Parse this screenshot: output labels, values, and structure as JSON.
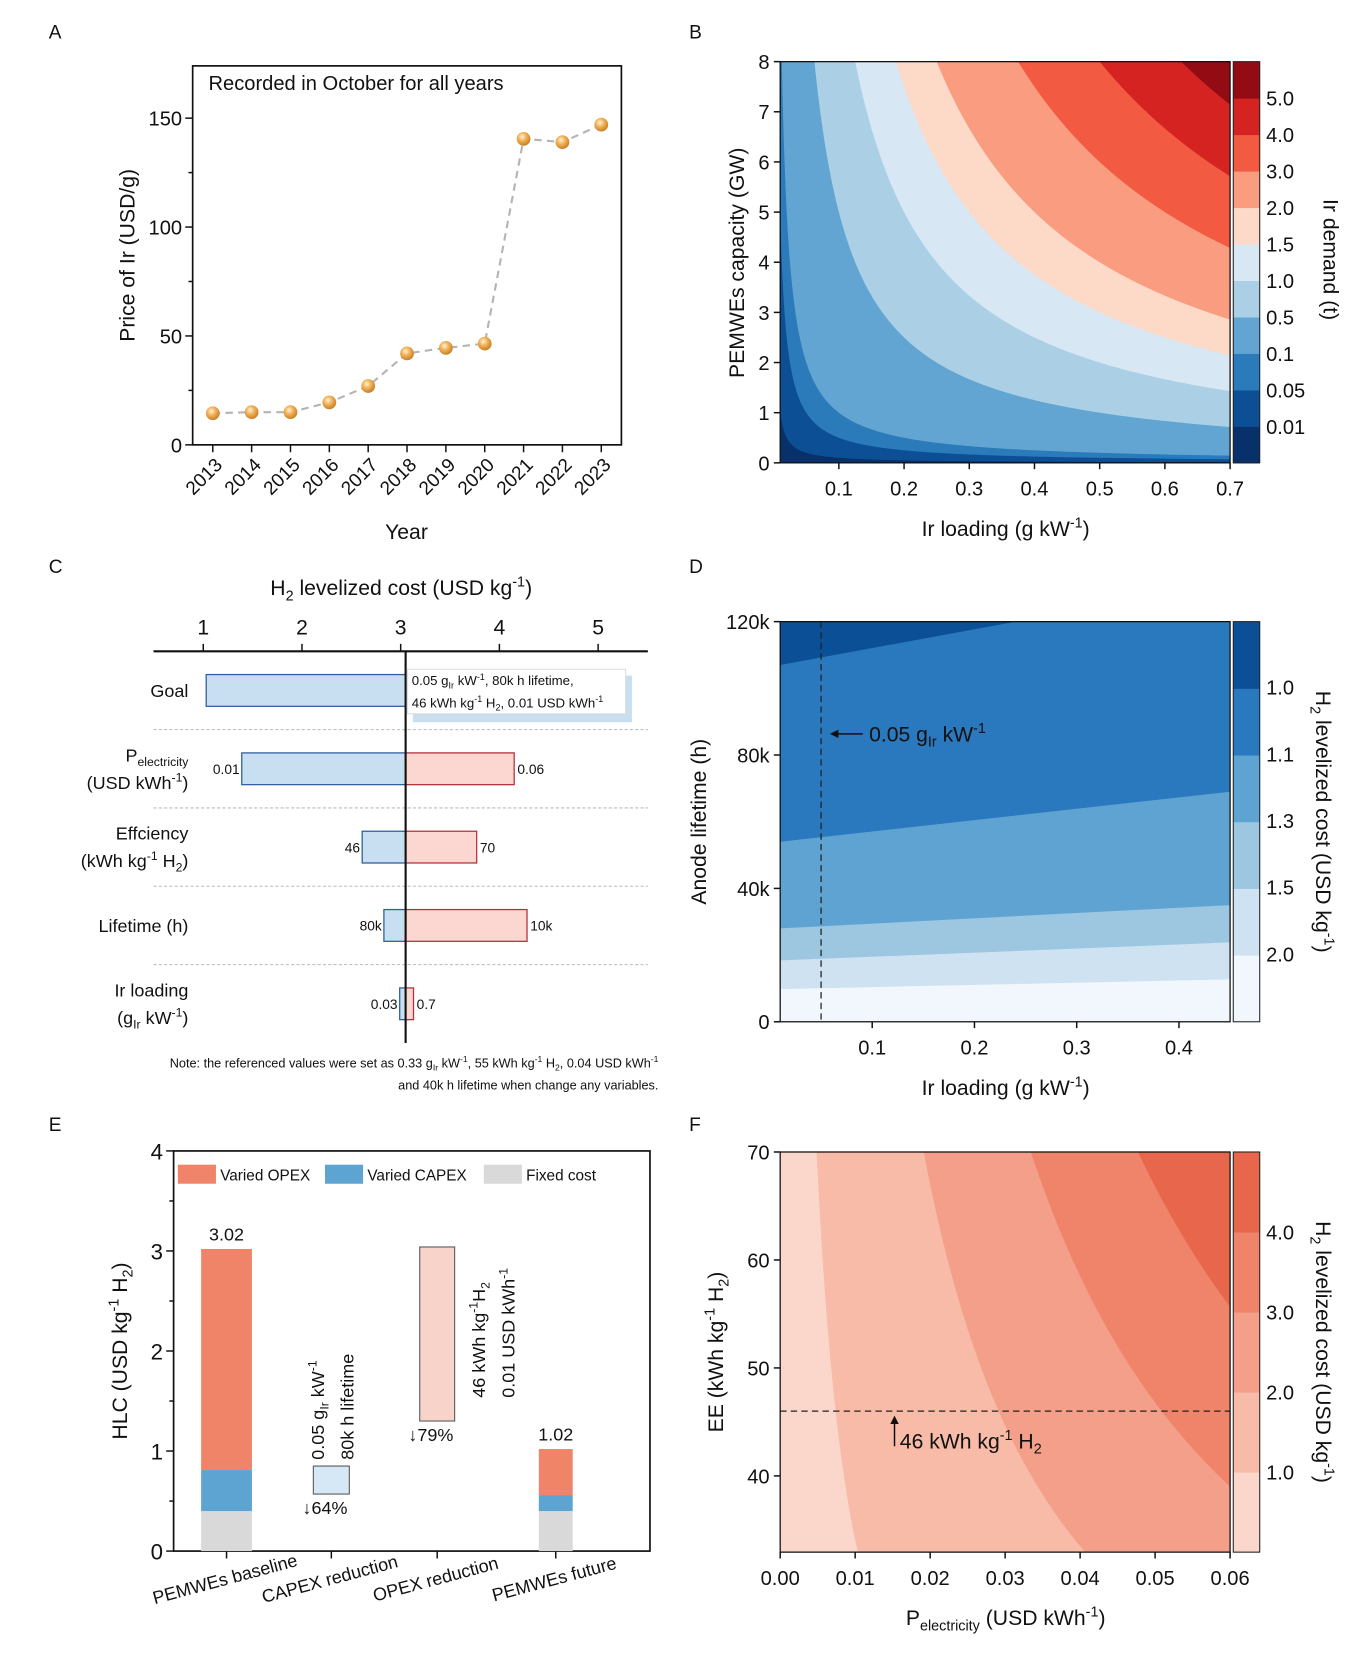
{
  "panel_letters": [
    "A",
    "B",
    "C",
    "D",
    "E",
    "F"
  ],
  "chart_data": [
    {
      "id": "A",
      "type": "line",
      "annotation": "Recorded in October for all years",
      "xlabel": [
        [
          "Year",
          ""
        ]
      ],
      "ylabel": [
        [
          "Price of Ir (USD/g)",
          ""
        ]
      ],
      "x": [
        "2013",
        "2014",
        "2015",
        "2016",
        "2017",
        "2018",
        "2019",
        "2020",
        "2021",
        "2022",
        "2023"
      ],
      "values": [
        14.5,
        15,
        15,
        19.5,
        27,
        42,
        44.5,
        46.5,
        140.5,
        139,
        147
      ],
      "ylim": [
        0,
        174
      ],
      "yticks": [
        0,
        50,
        100,
        150
      ],
      "marker_color": "#f0a848",
      "line_color": "#b4b4b4",
      "line_style": "dashed"
    },
    {
      "id": "B",
      "type": "heatmap",
      "subtype": "filled-contour",
      "xlabel": [
        [
          "Ir loading (g kW",
          ""
        ],
        [
          "-1",
          "sup"
        ],
        [
          ")",
          ""
        ]
      ],
      "ylabel": [
        [
          "PEMWEs capacity (GW)",
          ""
        ]
      ],
      "colorbar_label": [
        [
          "Ir demand (t)",
          ""
        ]
      ],
      "xlim": [
        0.01,
        0.7
      ],
      "ylim": [
        0,
        8
      ],
      "xticks": [
        "0.1",
        "0.2",
        "0.3",
        "0.4",
        "0.5",
        "0.6",
        "0.7"
      ],
      "yticks": [
        "0",
        "1",
        "2",
        "3",
        "4",
        "5",
        "6",
        "7",
        "8"
      ],
      "levels": [
        0.01,
        0.05,
        0.1,
        0.5,
        1.0,
        1.5,
        2.0,
        3.0,
        4.0,
        5.0
      ],
      "level_labels": [
        "0.01",
        "0.05",
        "0.1",
        "0.5",
        "1.0",
        "1.5",
        "2.0",
        "3.0",
        "4.0",
        "5.0"
      ],
      "colors": [
        "#08306b",
        "#0d4f94",
        "#2b7bba",
        "#62a5d2",
        "#abd0e6",
        "#d8e7f4",
        "#fdd9c7",
        "#fa9c7f",
        "#f25a41",
        "#d42321",
        "#930c14"
      ]
    },
    {
      "id": "C",
      "type": "bar",
      "subtype": "tornado",
      "title": [
        [
          "H",
          ""
        ],
        [
          "2",
          "sub"
        ],
        [
          " levelized cost (USD kg",
          ""
        ],
        [
          "-1",
          "sup"
        ],
        [
          ")",
          ""
        ]
      ],
      "xticks": [
        "1",
        "2",
        "3",
        "4",
        "5"
      ],
      "xlim": [
        0.5,
        5.5
      ],
      "reference": 3.05,
      "rows": [
        {
          "label": [
            [
              [
                "Goal",
                ""
              ]
            ]
          ],
          "low": 1.03,
          "high": null,
          "low_label": "",
          "high_label": ""
        },
        {
          "label": [
            [
              [
                "P",
                ""
              ],
              [
                "electricity",
                "sub"
              ]
            ],
            [
              [
                "(USD kWh",
                ""
              ],
              [
                "-1",
                "sup"
              ],
              [
                ")",
                ""
              ]
            ]
          ],
          "low": 1.39,
          "high": 4.15,
          "low_label": "0.01",
          "high_label": "0.06"
        },
        {
          "label": [
            [
              [
                "Effciency",
                ""
              ]
            ],
            [
              [
                "(kWh kg",
                ""
              ],
              [
                "-1",
                "sup"
              ],
              [
                " H",
                ""
              ],
              [
                "2",
                "sub"
              ],
              [
                ")",
                ""
              ]
            ]
          ],
          "low": 2.61,
          "high": 3.77,
          "low_label": "46",
          "high_label": "70"
        },
        {
          "label": [
            [
              [
                "Lifetime (h)",
                ""
              ]
            ]
          ],
          "low": 2.83,
          "high": 4.28,
          "low_label": "80k",
          "high_label": "10k"
        },
        {
          "label": [
            [
              [
                "Ir loading",
                ""
              ]
            ],
            [
              [
                "(g",
                ""
              ],
              [
                "Ir",
                "sub"
              ],
              [
                " kW",
                ""
              ],
              [
                "-1",
                "sup"
              ],
              [
                ")",
                ""
              ]
            ]
          ],
          "low": 2.99,
          "high": 3.13,
          "low_label": "0.03",
          "high_label": "0.7"
        }
      ],
      "goal_note": [
        [
          [
            "0.05 g",
            ""
          ],
          [
            "Ir",
            "sub"
          ],
          [
            " kW",
            ""
          ],
          [
            "-1",
            "sup"
          ],
          [
            ", 80k h lifetime,",
            ""
          ]
        ],
        [
          [
            "46 kWh kg",
            ""
          ],
          [
            "-1",
            "sup"
          ],
          [
            " H",
            ""
          ],
          [
            "2",
            "sub"
          ],
          [
            ", 0.01 USD kWh",
            ""
          ],
          [
            "-1",
            "sup"
          ]
        ]
      ],
      "footnote": [
        [
          [
            "Note: the referenced values were set as 0.33 g",
            ""
          ],
          [
            "Ir",
            "sub"
          ],
          [
            " kW",
            ""
          ],
          [
            "-1",
            "sup"
          ],
          [
            ", 55 kWh kg",
            ""
          ],
          [
            "-1",
            "sup"
          ],
          [
            " H",
            ""
          ],
          [
            "2",
            "sub"
          ],
          [
            ", 0.04 USD kWh",
            ""
          ],
          [
            "-1",
            "sup"
          ]
        ],
        [
          [
            "and 40k h lifetime when change any variables.",
            ""
          ]
        ]
      ],
      "low_color": "#c7dff0",
      "low_border": "#2d5f9e",
      "high_color": "#fcd6d1",
      "high_border": "#b5303b"
    },
    {
      "id": "D",
      "type": "heatmap",
      "subtype": "filled-contour",
      "xlabel": [
        [
          "Ir loading (g kW",
          ""
        ],
        [
          "-1",
          "sup"
        ],
        [
          ")",
          ""
        ]
      ],
      "ylabel": [
        [
          "Anode lifetime (h)",
          ""
        ]
      ],
      "colorbar_label": [
        [
          "H",
          ""
        ],
        [
          "2",
          "sub"
        ],
        [
          " levelized cost (USD kg",
          ""
        ],
        [
          "-1",
          "sup"
        ],
        [
          ")",
          ""
        ]
      ],
      "xlim": [
        0.01,
        0.45
      ],
      "ylim": [
        0,
        120000
      ],
      "xticks": [
        "0.1",
        "0.2",
        "0.3",
        "0.4"
      ],
      "yticks": [
        "0",
        "40k",
        "80k",
        "120k"
      ],
      "level_labels": [
        "2.0",
        "1.5",
        "1.3",
        "1.1",
        "1.0"
      ],
      "contour_lines": [
        {
          "level": 2.0,
          "lifetime_at_xmin": 9800,
          "lifetime_at_xmax": 12700
        },
        {
          "level": 1.5,
          "lifetime_at_xmin": 18400,
          "lifetime_at_xmax": 23800
        },
        {
          "level": 1.3,
          "lifetime_at_xmin": 28000,
          "lifetime_at_xmax": 35000
        },
        {
          "level": 1.1,
          "lifetime_at_xmin": 54000,
          "lifetime_at_xmax": 69000
        },
        {
          "level": 1.0,
          "lifetime_at_xmin": 107000,
          "lifetime_at_xmax": 131800
        }
      ],
      "colors": [
        "#f1f7fc",
        "#cfe2f2",
        "#9dc6e1",
        "#5fa3d2",
        "#2a78bd",
        "#0b4f96"
      ],
      "marker_line": {
        "x": 0.05,
        "style": "dashed",
        "label": [
          [
            "0.05 g",
            ""
          ],
          [
            "Ir",
            "sub"
          ],
          [
            " kW",
            ""
          ],
          [
            "-1",
            "sup"
          ]
        ]
      }
    },
    {
      "id": "E",
      "type": "bar",
      "subtype": "stacked",
      "ylabel": [
        [
          "HLC (USD kg",
          ""
        ],
        [
          "-1",
          "sup"
        ],
        [
          " H",
          ""
        ],
        [
          "2",
          "sub"
        ],
        [
          ")",
          ""
        ]
      ],
      "ylim": [
        0,
        4
      ],
      "yticks": [
        "0",
        "1",
        "2",
        "3",
        "4"
      ],
      "categories": [
        "PEMWEs baseline",
        "CAPEX reduction",
        "OPEX reduction",
        "PEMWEs future"
      ],
      "legend": [
        {
          "name": "Varied OPEX",
          "color": "#ef8468"
        },
        {
          "name": "Varied CAPEX",
          "color": "#5ea4d3"
        },
        {
          "name": "Fixed cost",
          "color": "#d9d9d9"
        }
      ],
      "legend_position": "top",
      "series": [
        {
          "name": "Fixed cost",
          "values": [
            0.4,
            null,
            null,
            0.4
          ]
        },
        {
          "name": "Varied CAPEX",
          "values": [
            0.41,
            null,
            null,
            0.16
          ]
        },
        {
          "name": "Varied OPEX",
          "values": [
            2.21,
            null,
            null,
            0.46
          ]
        }
      ],
      "totals": [
        "3.02",
        null,
        null,
        "1.02"
      ],
      "waterfall": [
        {
          "category": "CAPEX reduction",
          "from": 0.85,
          "to": 0.57,
          "fill": "#d6e7f5",
          "change": "64%",
          "change_color": "#2f72b5",
          "notes": [
            [
              [
                "0.05 g",
                ""
              ],
              [
                "Ir",
                "sub"
              ],
              [
                " kW",
                ""
              ],
              [
                "-1",
                "sup"
              ]
            ],
            [
              [
                "80k h lifetime",
                ""
              ]
            ]
          ]
        },
        {
          "category": "OPEX reduction",
          "from": 3.04,
          "to": 1.3,
          "fill": "#f8d3ca",
          "change": "79%",
          "change_color": "#e4533c",
          "notes": [
            [
              [
                "46 kWh kg",
                ""
              ],
              [
                "-1",
                "sup"
              ],
              [
                "H",
                ""
              ],
              [
                "2",
                "sub"
              ]
            ],
            [
              [
                "0.01 USD kWh",
                ""
              ],
              [
                "-1",
                "sup"
              ]
            ]
          ]
        }
      ],
      "arrow_glyph": "↓"
    },
    {
      "id": "F",
      "type": "heatmap",
      "subtype": "filled-contour",
      "xlabel": [
        [
          "P",
          ""
        ],
        [
          "electricity",
          "sub"
        ],
        [
          " (USD kWh",
          ""
        ],
        [
          "-1",
          "sup"
        ],
        [
          ")",
          ""
        ]
      ],
      "ylabel": [
        [
          "EE (kWh kg",
          ""
        ],
        [
          "-1",
          "sup"
        ],
        [
          " H",
          ""
        ],
        [
          "2",
          "sub"
        ],
        [
          ")",
          ""
        ]
      ],
      "colorbar_label": [
        [
          "H",
          ""
        ],
        [
          "2",
          "sub"
        ],
        [
          " levelized cost (USD kg",
          ""
        ],
        [
          "-1",
          "sup"
        ],
        [
          ")",
          ""
        ]
      ],
      "xlim": [
        0,
        0.06
      ],
      "ylim": [
        33,
        70
      ],
      "xticks": [
        "0.00",
        "0.01",
        "0.02",
        "0.03",
        "0.04",
        "0.05",
        "0.06"
      ],
      "yticks": [
        "40",
        "50",
        "60",
        "70"
      ],
      "levels": [
        1.0,
        2.0,
        3.0,
        4.0
      ],
      "level_labels": [
        "1.0",
        "2.0",
        "3.0",
        "4.0"
      ],
      "colors": [
        "#fbd6ca",
        "#f7bba8",
        "#f39f89",
        "#ef846a",
        "#e8664c"
      ],
      "marker_line": {
        "y": 46,
        "style": "dashed",
        "label": [
          [
            "46 kWh kg",
            ""
          ],
          [
            "-1",
            "sup"
          ],
          [
            " H",
            ""
          ],
          [
            "2",
            "sub"
          ]
        ]
      }
    }
  ]
}
